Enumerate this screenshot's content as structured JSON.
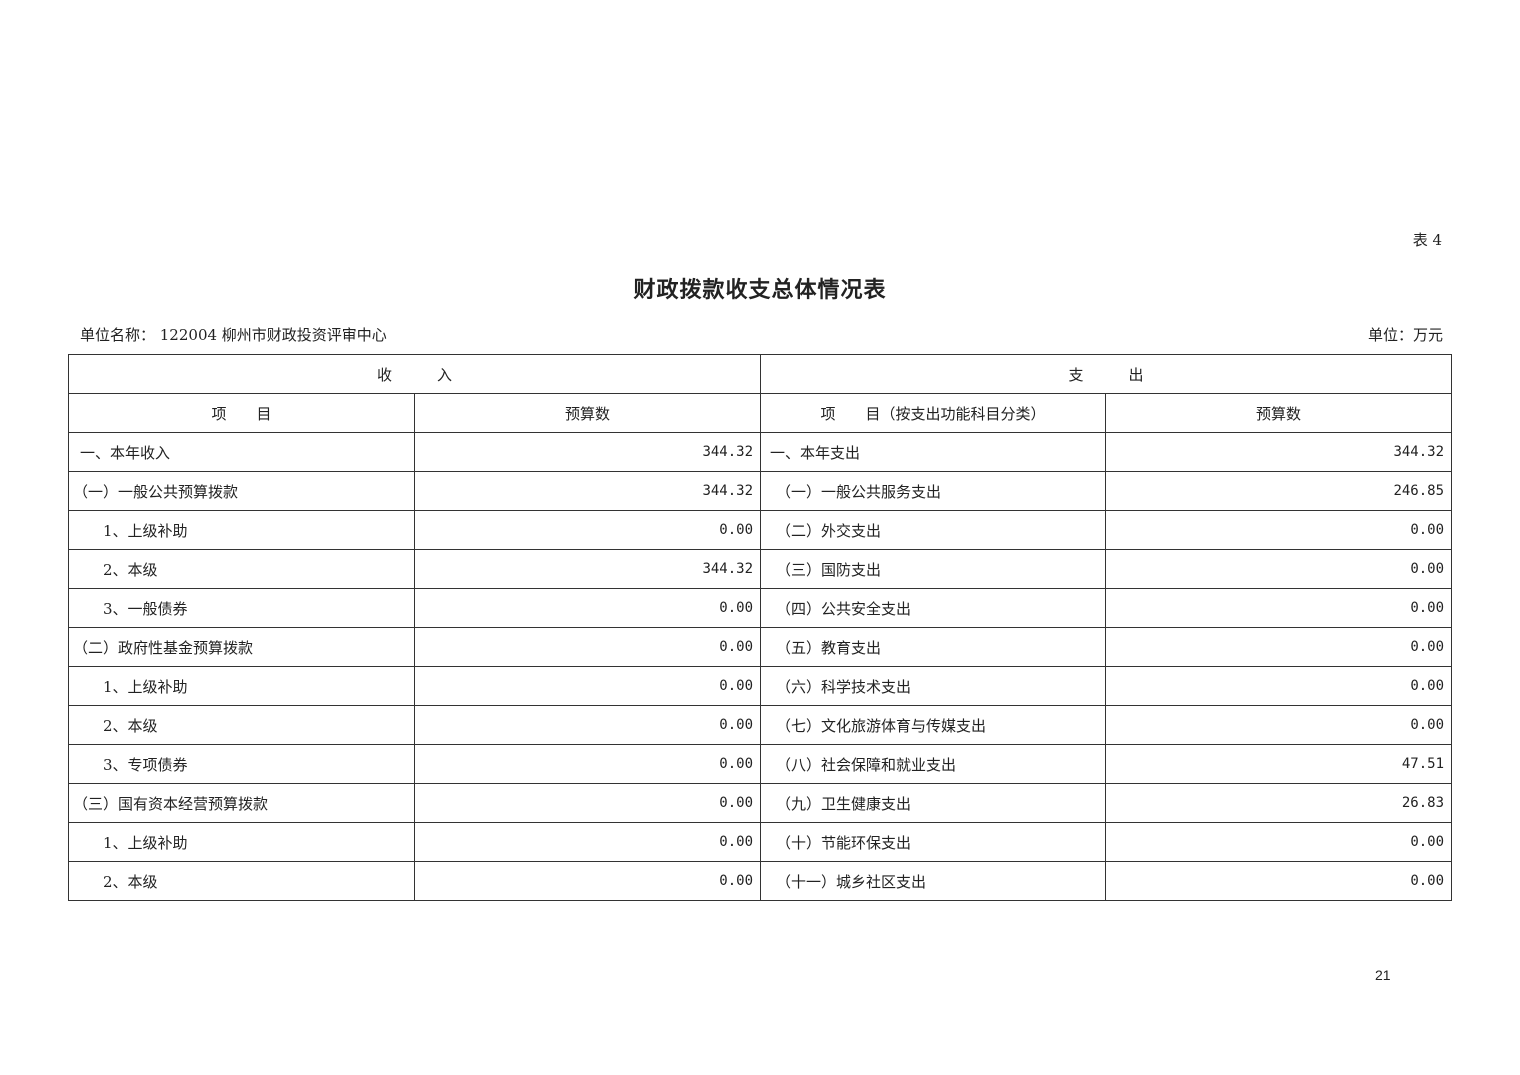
{
  "document": {
    "table_number": "表 4",
    "title": "财政拨款收支总体情况表",
    "unit_name": "单位名称： 122004 柳州市财政投资评审中心",
    "unit": "单位：万元",
    "page_number": "21"
  },
  "table": {
    "group_headers": {
      "income": "收　　　入",
      "expense": "支　　　出"
    },
    "column_headers": {
      "income_item": "项　　目",
      "income_budget": "预算数",
      "expense_item": "项　　目（按支出功能科目分类）",
      "expense_budget": "预算数"
    },
    "rows": [
      {
        "income_item": "一、本年收入",
        "income_budget": "344.32",
        "expense_item": "一、本年支出",
        "expense_budget": "344.32"
      },
      {
        "income_item": "（一）一般公共预算拨款",
        "income_budget": "344.32",
        "expense_item": "（一）一般公共服务支出",
        "expense_budget": "246.85"
      },
      {
        "income_item": "1、上级补助",
        "income_budget": "0.00",
        "expense_item": "（二）外交支出",
        "expense_budget": "0.00"
      },
      {
        "income_item": "2、本级",
        "income_budget": "344.32",
        "expense_item": "（三）国防支出",
        "expense_budget": "0.00"
      },
      {
        "income_item": "3、一般债券",
        "income_budget": "0.00",
        "expense_item": "（四）公共安全支出",
        "expense_budget": "0.00"
      },
      {
        "income_item": "（二）政府性基金预算拨款",
        "income_budget": "0.00",
        "expense_item": "（五）教育支出",
        "expense_budget": "0.00"
      },
      {
        "income_item": "1、上级补助",
        "income_budget": "0.00",
        "expense_item": "（六）科学技术支出",
        "expense_budget": "0.00"
      },
      {
        "income_item": "2、本级",
        "income_budget": "0.00",
        "expense_item": "（七）文化旅游体育与传媒支出",
        "expense_budget": "0.00"
      },
      {
        "income_item": "3、专项债券",
        "income_budget": "0.00",
        "expense_item": "（八）社会保障和就业支出",
        "expense_budget": "47.51"
      },
      {
        "income_item": "（三）国有资本经营预算拨款",
        "income_budget": "0.00",
        "expense_item": "（九）卫生健康支出",
        "expense_budget": "26.83"
      },
      {
        "income_item": "1、上级补助",
        "income_budget": "0.00",
        "expense_item": "（十）节能环保支出",
        "expense_budget": "0.00"
      },
      {
        "income_item": "2、本级",
        "income_budget": "0.00",
        "expense_item": "（十一）城乡社区支出",
        "expense_budget": "0.00"
      }
    ]
  }
}
